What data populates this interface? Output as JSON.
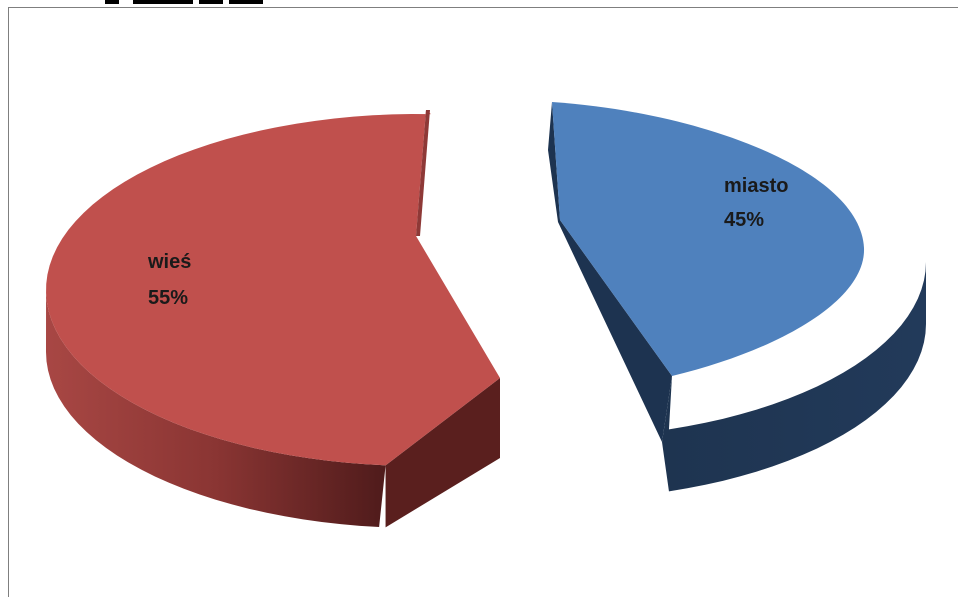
{
  "chart_data": {
    "type": "pie",
    "style": "3d-exploded",
    "title": "",
    "categories": [
      "wieś",
      "miasto"
    ],
    "values": [
      55,
      45
    ],
    "labels": [
      "wieś",
      "miasto"
    ],
    "value_labels": [
      "55%",
      "45%"
    ],
    "colors": {
      "wieś": "#c0504d",
      "miasto": "#4f81bd"
    },
    "legend": "none"
  }
}
